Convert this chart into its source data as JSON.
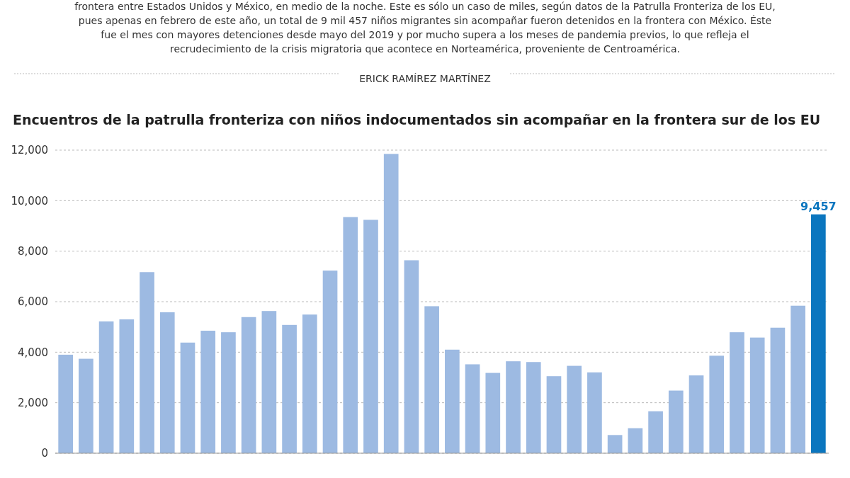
{
  "chart_data": {
    "type": "bar",
    "title": "Encuentros de la patrulla fronteriza con niños indocumentados sin acompañar en la frontera sur de los EU",
    "subtitle": "frontera entre Estados Unidos y México, en medio de la noche. Este es sólo un caso de miles, según datos de la Patrulla Fronteriza de los EU, pues apenas en febrero de este año, un total de 9 mil 457 niños migrantes sin acompañar fueron detenidos en la frontera con México. Éste fue el mes con mayores detenciones desde mayo del 2019 y por mucho supera a los meses de pandemia previos, lo que refleja el recrudecimiento de la crisis migratoria que acontece en Norteamérica, proveniente de Centroamérica.",
    "annotations": [
      "ERICK RAMÍREZ MARTÍNEZ"
    ],
    "categories": [
      null,
      null,
      null,
      null,
      null,
      null,
      null,
      null,
      null,
      null,
      null,
      null,
      null,
      null,
      null,
      null,
      null,
      null,
      null,
      null,
      null,
      null,
      null,
      null,
      null,
      null,
      null,
      null,
      null,
      null,
      null,
      null,
      null,
      null,
      null,
      null,
      null,
      null
    ],
    "values": [
      3900,
      3740,
      5220,
      5300,
      7170,
      5580,
      4380,
      4850,
      4790,
      5390,
      5630,
      5080,
      5490,
      7230,
      9350,
      9240,
      11850,
      7640,
      5820,
      4100,
      3520,
      3180,
      3640,
      3610,
      3050,
      3460,
      3200,
      720,
      990,
      1660,
      2480,
      3080,
      3860,
      4790,
      4580,
      4970,
      5840,
      9457
    ],
    "colors": [
      "#9dbae2",
      "#9dbae2",
      "#9dbae2",
      "#9dbae2",
      "#9dbae2",
      "#9dbae2",
      "#9dbae2",
      "#9dbae2",
      "#9dbae2",
      "#9dbae2",
      "#9dbae2",
      "#9dbae2",
      "#9dbae2",
      "#9dbae2",
      "#9dbae2",
      "#9dbae2",
      "#9dbae2",
      "#9dbae2",
      "#9dbae2",
      "#9dbae2",
      "#9dbae2",
      "#9dbae2",
      "#9dbae2",
      "#9dbae2",
      "#9dbae2",
      "#9dbae2",
      "#9dbae2",
      "#9dbae2",
      "#9dbae2",
      "#9dbae2",
      "#9dbae2",
      "#9dbae2",
      "#9dbae2",
      "#9dbae2",
      "#9dbae2",
      "#9dbae2",
      "#9dbae2",
      "#0b76bf"
    ],
    "value_labels": [
      null,
      null,
      null,
      null,
      null,
      null,
      null,
      null,
      null,
      null,
      null,
      null,
      null,
      null,
      null,
      null,
      null,
      null,
      null,
      null,
      null,
      null,
      null,
      null,
      null,
      null,
      null,
      null,
      null,
      null,
      null,
      null,
      null,
      null,
      null,
      null,
      null,
      "9,457"
    ],
    "ylim": [
      0,
      12000
    ],
    "yticks": [
      0,
      {
        "value": 2000,
        "label": "2,000"
      },
      {
        "value": 4000,
        "label": "4,000"
      },
      {
        "value": 6000,
        "label": "6,000"
      },
      {
        "value": 8000,
        "label": "8,000"
      },
      {
        "value": 10000,
        "label": "10,000"
      },
      {
        "value": 12000,
        "label": "12,000"
      }
    ],
    "grid": "y"
  }
}
